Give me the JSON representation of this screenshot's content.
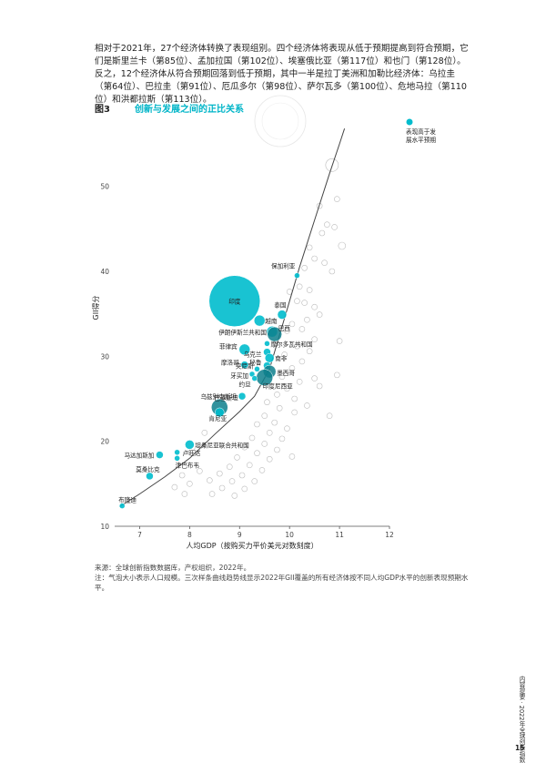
{
  "paragraph": "相对于2021年，27个经济体转换了表现组别。四个经济体将表现从低于预期提高到符合预期，它们是斯里兰卡（第85位）、孟加拉国（第102位）、埃塞俄比亚（第117位）和也门（第128位）。反之，12个经济体从符合预期回落到低于预期，其中一半是拉丁美洲和加勒比经济体：乌拉圭（第64位）、巴拉圭（第91位）、厄瓜多尔（第98位）、萨尔瓦多（第100位）、危地马拉（第110位）和洪都拉斯（第113位）。",
  "figure": {
    "label": "图3",
    "title": "创新与发展之间的正比关系"
  },
  "source_line": "来源：全球创新指数数据库，产权组织，2022年。",
  "note_line": "注：气泡大小表示人口规模。三次样条曲线趋势线显示2022年GII覆盖的所有经济体按不同人均GDP水平的创新表现预期水平。",
  "side_text": "内容提要 · 2022年全球创新指数",
  "page_number": "15",
  "colors": {
    "accent": "#00bccd",
    "dark_point": "#0d7f8c",
    "hollow": "#bdbdbd",
    "curve": "#444444"
  },
  "chart_data": {
    "type": "scatter",
    "xlabel": "人均GDP（按购买力平价美元对数刻度）",
    "ylabel": "GII得分",
    "xlim": [
      6.5,
      12
    ],
    "ylim": [
      10,
      58
    ],
    "xticks": [
      7,
      8,
      9,
      10,
      11,
      12
    ],
    "yticks": [
      10,
      20,
      30,
      40,
      50
    ],
    "legend": {
      "label_line1": "表现高于发",
      "label_line2": "展水平预期",
      "placement": "top-right"
    },
    "trend_curve": [
      [
        6.6,
        12.3
      ],
      [
        7.0,
        13.8
      ],
      [
        7.5,
        15.8
      ],
      [
        8.0,
        18.0
      ],
      [
        8.5,
        20.8
      ],
      [
        9.0,
        23.5
      ],
      [
        9.3,
        25.3
      ],
      [
        9.6,
        28.5
      ],
      [
        9.8,
        32.5
      ],
      [
        10.0,
        36.5
      ],
      [
        10.2,
        40.5
      ],
      [
        10.5,
        46.0
      ],
      [
        10.8,
        51.5
      ],
      [
        11.0,
        55.0
      ],
      [
        11.1,
        56.8
      ]
    ],
    "highlighted": [
      {
        "name": "保加利亚",
        "x": 10.15,
        "y": 39.5,
        "size": 3
      },
      {
        "name": "印度",
        "x": 8.9,
        "y": 36.5,
        "size": 28
      },
      {
        "name": "泰国",
        "x": 9.85,
        "y": 34.9,
        "size": 5
      },
      {
        "name": "越南",
        "x": 9.4,
        "y": 34.2,
        "size": 6
      },
      {
        "name": "伊朗伊斯兰共和国",
        "x": 9.65,
        "y": 32.9,
        "size": 6
      },
      {
        "name": "巴西",
        "x": 9.7,
        "y": 32.6,
        "size": 8,
        "dark": true
      },
      {
        "name": "摩尔多瓦共和国",
        "x": 9.55,
        "y": 31.5,
        "size": 3
      },
      {
        "name": "菲律宾",
        "x": 9.1,
        "y": 30.8,
        "size": 6
      },
      {
        "name": "乌克兰",
        "x": 9.55,
        "y": 30.5,
        "size": 4
      },
      {
        "name": "南非",
        "x": 9.6,
        "y": 29.8,
        "size": 5
      },
      {
        "name": "秘鲁",
        "x": 9.55,
        "y": 28.9,
        "size": 4
      },
      {
        "name": "摩洛哥",
        "x": 9.1,
        "y": 29.0,
        "size": 4
      },
      {
        "name": "突尼斯",
        "x": 9.35,
        "y": 28.5,
        "size": 3
      },
      {
        "name": "墨西哥",
        "x": 9.6,
        "y": 28.2,
        "size": 7,
        "dark": true
      },
      {
        "name": "牙买加",
        "x": 9.25,
        "y": 27.9,
        "size": 3
      },
      {
        "name": "印度尼西亚",
        "x": 9.5,
        "y": 27.5,
        "size": 9,
        "dark": true
      },
      {
        "name": "约旦",
        "x": 9.3,
        "y": 27.4,
        "size": 3
      },
      {
        "name": "乌兹别克斯坦",
        "x": 9.05,
        "y": 25.3,
        "size": 4
      },
      {
        "name": "巴基斯坦",
        "x": 8.6,
        "y": 24.0,
        "size": 9,
        "dark": true
      },
      {
        "name": "肯尼亚",
        "x": 8.6,
        "y": 23.4,
        "size": 5
      },
      {
        "name": "坦桑尼亚联合共和国",
        "x": 8.0,
        "y": 19.6,
        "size": 5
      },
      {
        "name": "卢旺达",
        "x": 7.75,
        "y": 18.7,
        "size": 3
      },
      {
        "name": "马达加斯加",
        "x": 7.4,
        "y": 18.4,
        "size": 4
      },
      {
        "name": "津巴布韦",
        "x": 7.75,
        "y": 18.0,
        "size": 3
      },
      {
        "name": "莫桑比克",
        "x": 7.2,
        "y": 15.9,
        "size": 4
      },
      {
        "name": "布隆迪",
        "x": 6.65,
        "y": 12.4,
        "size": 3
      }
    ],
    "others": [
      [
        10.85,
        52.5,
        7
      ],
      [
        10.95,
        48.5,
        3
      ],
      [
        10.6,
        47.7,
        3
      ],
      [
        10.75,
        45.5,
        3
      ],
      [
        10.9,
        45.2,
        3
      ],
      [
        10.65,
        44.5,
        3
      ],
      [
        11.05,
        43.0,
        4
      ],
      [
        10.4,
        42.8,
        3
      ],
      [
        10.5,
        41.5,
        3
      ],
      [
        10.7,
        41.0,
        3
      ],
      [
        10.3,
        40.4,
        3
      ],
      [
        10.85,
        40.0,
        3
      ],
      [
        10.2,
        38.2,
        3
      ],
      [
        10.4,
        37.8,
        3
      ],
      [
        10.0,
        37.6,
        3
      ],
      [
        10.15,
        36.5,
        3
      ],
      [
        10.3,
        36.3,
        3
      ],
      [
        10.5,
        35.8,
        3
      ],
      [
        10.6,
        34.9,
        3
      ],
      [
        10.05,
        33.8,
        3
      ],
      [
        10.35,
        34.3,
        3
      ],
      [
        10.25,
        33.2,
        3
      ],
      [
        9.95,
        33.0,
        3
      ],
      [
        10.5,
        32.0,
        3
      ],
      [
        10.15,
        31.2,
        3
      ],
      [
        10.4,
        30.6,
        3
      ],
      [
        9.9,
        30.2,
        3
      ],
      [
        10.25,
        29.4,
        3
      ],
      [
        10.05,
        28.6,
        3
      ],
      [
        9.85,
        27.6,
        3
      ],
      [
        10.2,
        27.0,
        3
      ],
      [
        9.95,
        26.2,
        3
      ],
      [
        10.6,
        26.5,
        3
      ],
      [
        9.75,
        25.5,
        3
      ],
      [
        10.1,
        25.0,
        3
      ],
      [
        9.55,
        24.6,
        3
      ],
      [
        9.8,
        23.9,
        3
      ],
      [
        10.1,
        23.4,
        3
      ],
      [
        10.35,
        24.2,
        3
      ],
      [
        9.5,
        23.0,
        3
      ],
      [
        9.7,
        22.2,
        3
      ],
      [
        9.95,
        21.5,
        3
      ],
      [
        9.35,
        22.0,
        3
      ],
      [
        9.6,
        21.0,
        3
      ],
      [
        9.85,
        20.3,
        3
      ],
      [
        9.25,
        20.4,
        3
      ],
      [
        9.5,
        19.7,
        3
      ],
      [
        9.75,
        19.0,
        3
      ],
      [
        9.1,
        19.3,
        3
      ],
      [
        9.35,
        18.6,
        3
      ],
      [
        9.6,
        17.9,
        3
      ],
      [
        8.95,
        18.1,
        3
      ],
      [
        9.2,
        17.2,
        3
      ],
      [
        9.45,
        16.6,
        3
      ],
      [
        8.8,
        17.0,
        3
      ],
      [
        9.05,
        16.0,
        3
      ],
      [
        9.3,
        15.3,
        3
      ],
      [
        8.6,
        16.2,
        3
      ],
      [
        8.85,
        15.3,
        3
      ],
      [
        9.1,
        14.4,
        3
      ],
      [
        8.4,
        15.4,
        3
      ],
      [
        8.65,
        14.5,
        3
      ],
      [
        8.9,
        13.6,
        3
      ],
      [
        8.2,
        16.5,
        3
      ],
      [
        8.45,
        13.8,
        3
      ],
      [
        8.0,
        15.0,
        3
      ],
      [
        7.85,
        16.0,
        3
      ],
      [
        7.7,
        14.6,
        3
      ],
      [
        7.9,
        13.8,
        3
      ],
      [
        10.8,
        23.0,
        3
      ],
      [
        11.0,
        31.8,
        3
      ],
      [
        10.95,
        27.8,
        3
      ],
      [
        10.5,
        27.4,
        3
      ],
      [
        10.05,
        18.2,
        3
      ],
      [
        8.3,
        21.0,
        3
      ],
      [
        8.15,
        19.0,
        3
      ]
    ]
  }
}
